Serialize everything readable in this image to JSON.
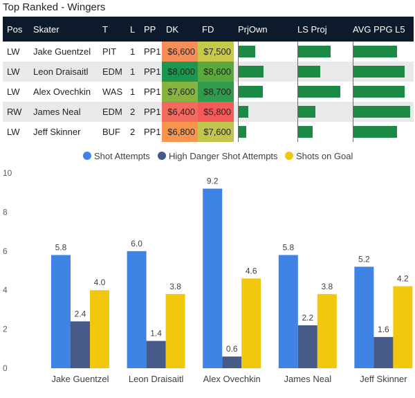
{
  "title": "Top Ranked - Wingers",
  "table": {
    "headers": [
      "Pos",
      "Skater",
      "T",
      "L",
      "PP",
      "DK",
      "FD",
      "PrjOwn",
      "LS Proj",
      "AVG PPG L5"
    ],
    "rows": [
      {
        "pos": "LW",
        "skater": "Jake Guentzel",
        "team": "PIT",
        "line": "1",
        "pp": "PP1",
        "dk": "$6,600",
        "fd": "$7,500",
        "dk_color": "#f78d58",
        "fd_color": "#c7c948",
        "prj_own": 0.38,
        "ls_proj": 0.62,
        "avg_ppg": 0.75
      },
      {
        "pos": "LW",
        "skater": "Leon Draisaitl",
        "team": "EDM",
        "line": "1",
        "pp": "PP1",
        "dk": "$8,000",
        "fd": "$8,600",
        "dk_color": "#1f9650",
        "fd_color": "#5ba83f",
        "prj_own": 0.58,
        "ls_proj": 0.42,
        "avg_ppg": 0.88
      },
      {
        "pos": "LW",
        "skater": "Alex Ovechkin",
        "team": "WAS",
        "line": "1",
        "pp": "PP1",
        "dk": "$7,600",
        "fd": "$8,700",
        "dk_color": "#87b43f",
        "fd_color": "#2e9c4c",
        "prj_own": 0.57,
        "ls_proj": 0.8,
        "avg_ppg": 0.88
      },
      {
        "pos": "RW",
        "skater": "James Neal",
        "team": "EDM",
        "line": "2",
        "pp": "PP1",
        "dk": "$6,400",
        "fd": "$5,800",
        "dk_color": "#f36b5e",
        "fd_color": "#f55a5a",
        "prj_own": 0.22,
        "ls_proj": 0.33,
        "avg_ppg": 0.98
      },
      {
        "pos": "LW",
        "skater": "Jeff Skinner",
        "team": "BUF",
        "line": "2",
        "pp": "PP1",
        "dk": "$6,800",
        "fd": "$7,600",
        "dk_color": "#f7954f",
        "fd_color": "#c2c54b",
        "prj_own": 0.18,
        "ls_proj": 0.28,
        "avg_ppg": 0.75
      }
    ]
  },
  "chart_data": {
    "type": "bar",
    "categories": [
      "Jake Guentzel",
      "Leon Draisaitl",
      "Alex Ovechkin",
      "James Neal",
      "Jeff Skinner"
    ],
    "series": [
      {
        "name": "Shot Attempts",
        "color": "#3f84e5",
        "values": [
          5.8,
          6.0,
          9.2,
          5.8,
          5.2
        ]
      },
      {
        "name": "High Danger Shot Attempts",
        "color": "#465a88",
        "values": [
          2.4,
          1.4,
          0.6,
          2.2,
          1.6
        ]
      },
      {
        "name": "Shots on Goal",
        "color": "#f2c80f",
        "values": [
          4.0,
          3.8,
          4.6,
          3.8,
          4.2
        ]
      }
    ],
    "ylim": [
      0,
      10
    ],
    "yticks": [
      0,
      2,
      4,
      6,
      8,
      10
    ],
    "legend": "top-center",
    "grid": false
  }
}
